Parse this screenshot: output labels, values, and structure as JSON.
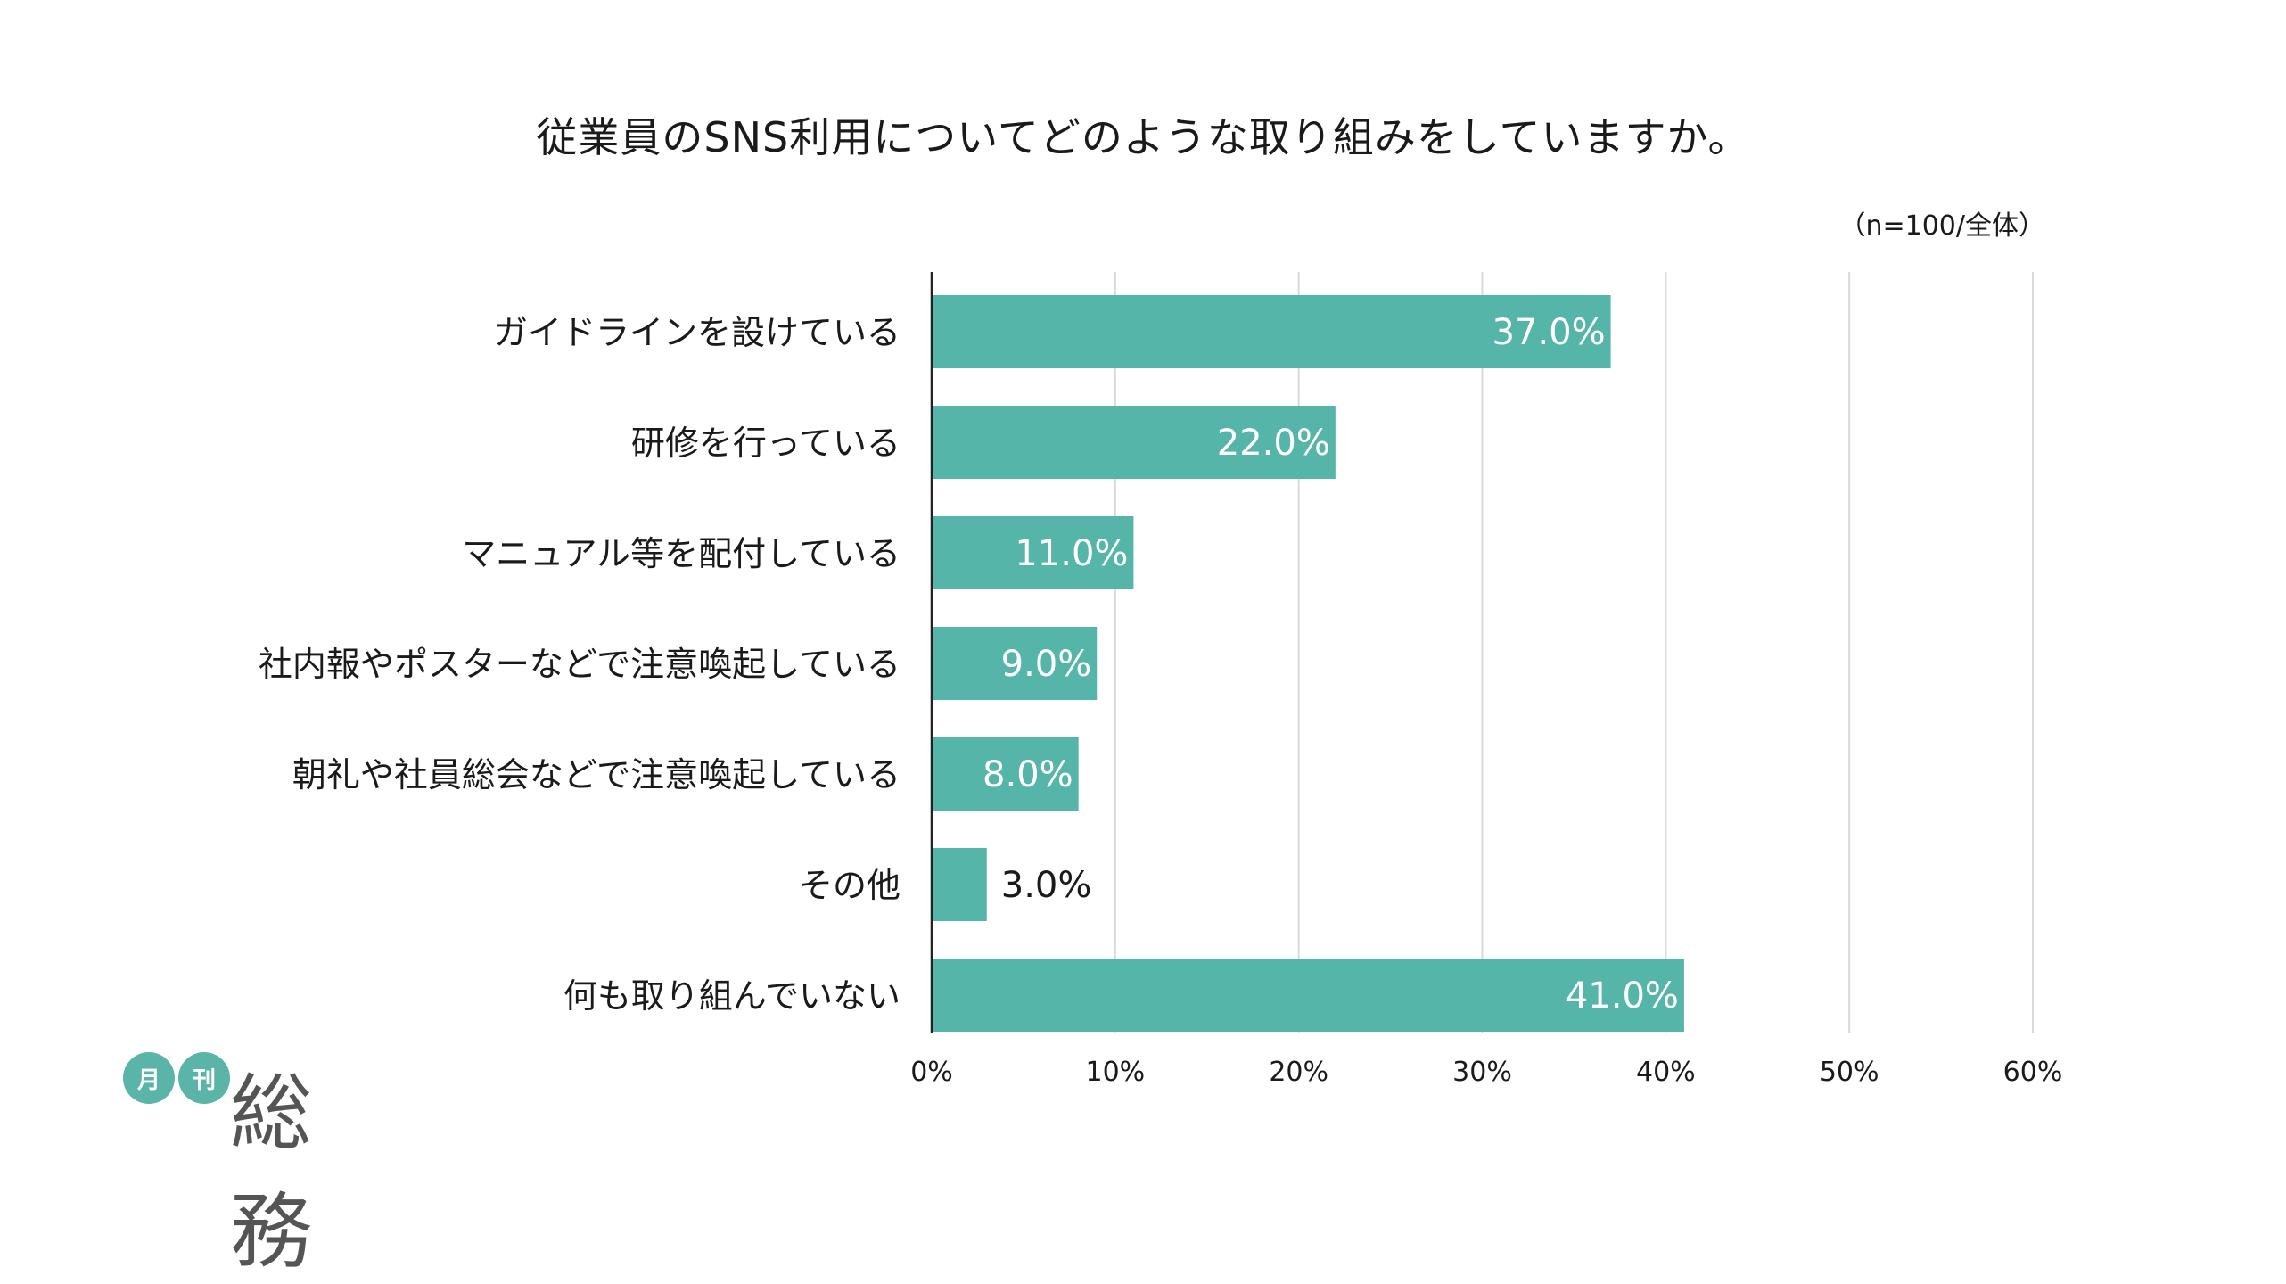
{
  "title": "従業員のSNS利用についてどのような取り組みをしていますか。",
  "note": "（n=100/全体）",
  "logo": {
    "circle1": "月",
    "circle2": "刊",
    "main": "総務"
  },
  "colors": {
    "bar": "#56b5a9",
    "grid": "#d9d9d9",
    "axis": "#222222",
    "label_inside": "#ffffff",
    "label_outside": "#1a1a1a"
  },
  "chart_data": {
    "type": "bar",
    "orientation": "horizontal",
    "categories": [
      "ガイドラインを設けている",
      "研修を行っている",
      "マニュアル等を配付している",
      "社内報やポスターなどで注意喚起している",
      "朝礼や社員総会などで注意喚起している",
      "その他",
      "何も取り組んでいない"
    ],
    "values": [
      37.0,
      22.0,
      11.0,
      9.0,
      8.0,
      3.0,
      41.0
    ],
    "value_labels": [
      "37.0%",
      "22.0%",
      "11.0%",
      "9.0%",
      "8.0%",
      "3.0%",
      "41.0%"
    ],
    "xlim": [
      0,
      60
    ],
    "ticks": [
      0,
      10,
      20,
      30,
      40,
      50,
      60
    ],
    "tick_labels": [
      "0%",
      "10%",
      "20%",
      "30%",
      "40%",
      "50%",
      "60%"
    ],
    "grid": true
  }
}
